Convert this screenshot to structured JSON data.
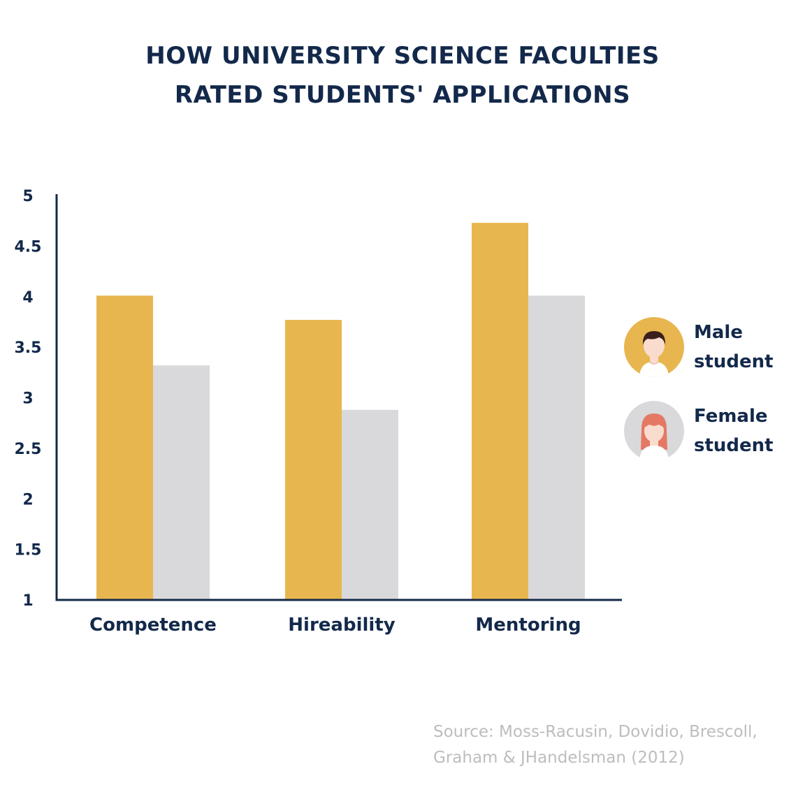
{
  "title": {
    "line1": "HOW UNIVERSITY SCIENCE FACULTIES",
    "line2": "RATED STUDENTS' APPLICATIONS"
  },
  "chart_data": {
    "type": "bar",
    "title": "HOW UNIVERSITY SCIENCE FACULTIES RATED STUDENTS' APPLICATIONS",
    "categories": [
      "Competence",
      "Hireability",
      "Mentoring"
    ],
    "series": [
      {
        "name": "Male student",
        "color": "#e8b64f",
        "values": [
          4.01,
          3.77,
          4.73
        ]
      },
      {
        "name": "Female student",
        "color": "#d9d9db",
        "values": [
          3.32,
          2.88,
          4.01
        ]
      }
    ],
    "ylim": [
      1,
      5
    ],
    "yticks": [
      "1",
      "1.5",
      "2",
      "2.5",
      "3",
      "3.5",
      "4",
      "4.5",
      "5"
    ],
    "xlabel": "",
    "ylabel": "",
    "grid": false,
    "legend_position": "right"
  },
  "legend": {
    "male": {
      "line1": "Male",
      "line2": "student"
    },
    "female": {
      "line1": "Female",
      "line2": "student"
    }
  },
  "source": {
    "line1": "Source: Moss-Racusin, Dovidio, Brescoll,",
    "line2": "Graham & JHandelsman (2012)"
  },
  "colors": {
    "text": "#13294b",
    "male_bar": "#e8b64f",
    "female_bar": "#d9d9db",
    "source_text": "#bdbdbd"
  }
}
